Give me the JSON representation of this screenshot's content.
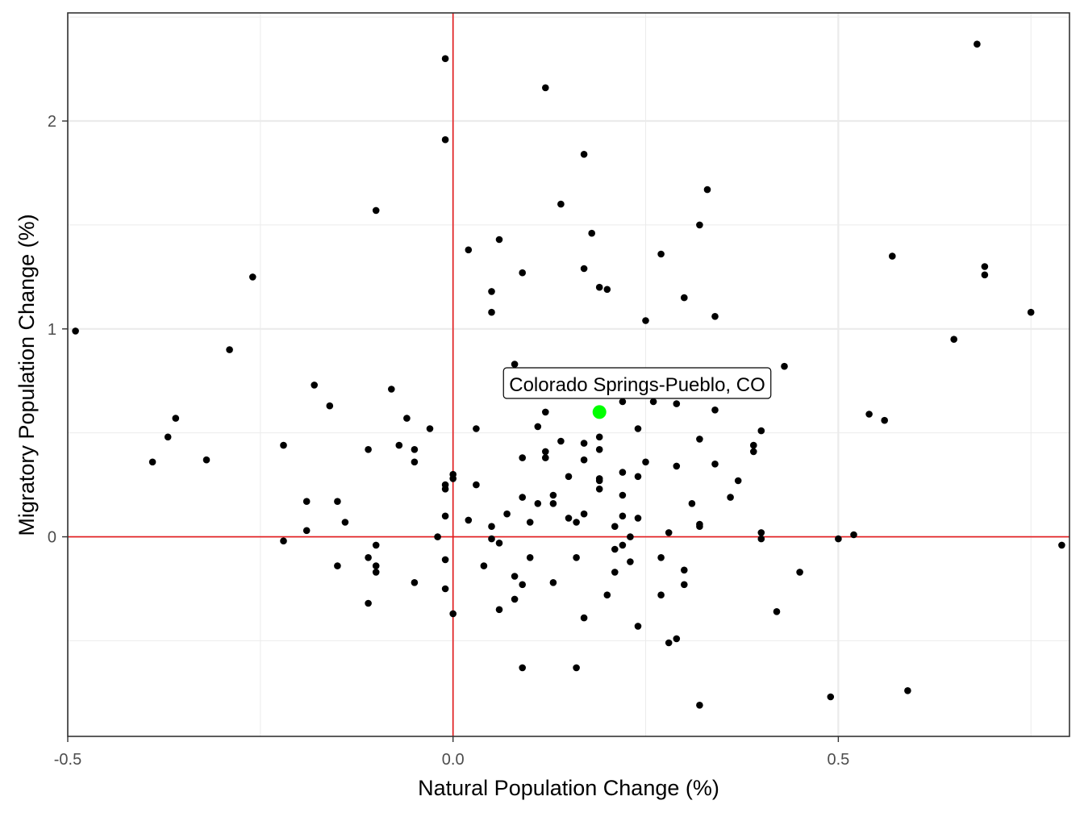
{
  "chart_data": {
    "type": "scatter",
    "xlabel": "Natural Population Change (%)",
    "ylabel": "Migratory Population Change (%)",
    "xlim": [
      -0.5,
      0.8
    ],
    "ylim": [
      -0.96,
      2.52
    ],
    "x_ticks": [
      -0.5,
      0.0,
      0.5
    ],
    "x_tick_labels": [
      "-0.5",
      "0.0",
      "0.5"
    ],
    "y_ticks": [
      0,
      1,
      2
    ],
    "y_tick_labels": [
      "0",
      "1",
      "2"
    ],
    "reference_lines": {
      "x": 0,
      "y": 0,
      "color": "#e41a1c"
    },
    "grid": true,
    "point_color": "#000000",
    "highlight": {
      "label": "Colorado Springs-Pueblo, CO",
      "x": 0.19,
      "y": 0.6,
      "color": "#00ff00"
    },
    "points": [
      [
        -0.49,
        0.99
      ],
      [
        -0.39,
        0.36
      ],
      [
        -0.37,
        0.48
      ],
      [
        -0.36,
        0.57
      ],
      [
        -0.32,
        0.37
      ],
      [
        -0.29,
        0.9
      ],
      [
        -0.26,
        1.25
      ],
      [
        -0.22,
        0.44
      ],
      [
        -0.22,
        -0.02
      ],
      [
        -0.19,
        0.17
      ],
      [
        -0.19,
        0.03
      ],
      [
        -0.18,
        0.73
      ],
      [
        -0.16,
        0.63
      ],
      [
        -0.15,
        0.17
      ],
      [
        -0.15,
        -0.14
      ],
      [
        -0.14,
        0.07
      ],
      [
        -0.11,
        0.42
      ],
      [
        -0.11,
        -0.1
      ],
      [
        -0.11,
        -0.32
      ],
      [
        -0.1,
        1.57
      ],
      [
        -0.1,
        -0.04
      ],
      [
        -0.1,
        -0.14
      ],
      [
        -0.1,
        -0.17
      ],
      [
        -0.08,
        0.71
      ],
      [
        -0.07,
        0.44
      ],
      [
        -0.06,
        0.57
      ],
      [
        -0.05,
        0.42
      ],
      [
        -0.05,
        0.36
      ],
      [
        -0.05,
        -0.22
      ],
      [
        -0.03,
        0.52
      ],
      [
        -0.02,
        0.0
      ],
      [
        -0.01,
        2.3
      ],
      [
        -0.01,
        1.91
      ],
      [
        -0.01,
        0.25
      ],
      [
        -0.01,
        0.23
      ],
      [
        -0.01,
        0.1
      ],
      [
        -0.01,
        -0.11
      ],
      [
        -0.01,
        -0.25
      ],
      [
        0.0,
        0.3
      ],
      [
        0.0,
        0.28
      ],
      [
        0.0,
        -0.37
      ],
      [
        0.02,
        1.38
      ],
      [
        0.02,
        0.08
      ],
      [
        0.03,
        0.52
      ],
      [
        0.03,
        0.25
      ],
      [
        0.04,
        -0.14
      ],
      [
        0.05,
        1.18
      ],
      [
        0.05,
        1.08
      ],
      [
        0.05,
        0.05
      ],
      [
        0.05,
        -0.01
      ],
      [
        0.06,
        1.43
      ],
      [
        0.06,
        -0.03
      ],
      [
        0.06,
        -0.35
      ],
      [
        0.07,
        0.11
      ],
      [
        0.08,
        0.83
      ],
      [
        0.08,
        -0.19
      ],
      [
        0.08,
        -0.3
      ],
      [
        0.09,
        1.27
      ],
      [
        0.09,
        0.38
      ],
      [
        0.09,
        0.19
      ],
      [
        0.09,
        -0.23
      ],
      [
        0.09,
        -0.63
      ],
      [
        0.1,
        0.07
      ],
      [
        0.1,
        -0.1
      ],
      [
        0.11,
        0.53
      ],
      [
        0.11,
        0.16
      ],
      [
        0.12,
        2.16
      ],
      [
        0.12,
        0.6
      ],
      [
        0.12,
        0.41
      ],
      [
        0.12,
        0.38
      ],
      [
        0.13,
        0.2
      ],
      [
        0.13,
        0.16
      ],
      [
        0.13,
        -0.22
      ],
      [
        0.14,
        1.6
      ],
      [
        0.14,
        0.46
      ],
      [
        0.15,
        0.29
      ],
      [
        0.15,
        0.09
      ],
      [
        0.16,
        0.07
      ],
      [
        0.16,
        -0.1
      ],
      [
        0.16,
        -0.63
      ],
      [
        0.17,
        1.84
      ],
      [
        0.17,
        1.29
      ],
      [
        0.17,
        0.45
      ],
      [
        0.17,
        0.37
      ],
      [
        0.17,
        0.11
      ],
      [
        0.17,
        -0.39
      ],
      [
        0.18,
        1.46
      ],
      [
        0.19,
        1.2
      ],
      [
        0.19,
        0.48
      ],
      [
        0.19,
        0.42
      ],
      [
        0.19,
        0.28
      ],
      [
        0.19,
        0.27
      ],
      [
        0.19,
        0.23
      ],
      [
        0.2,
        1.19
      ],
      [
        0.2,
        -0.28
      ],
      [
        0.21,
        0.05
      ],
      [
        0.21,
        -0.06
      ],
      [
        0.21,
        -0.17
      ],
      [
        0.22,
        0.65
      ],
      [
        0.22,
        0.31
      ],
      [
        0.22,
        0.2
      ],
      [
        0.22,
        0.1
      ],
      [
        0.22,
        -0.04
      ],
      [
        0.23,
        0.0
      ],
      [
        0.23,
        -0.12
      ],
      [
        0.24,
        0.52
      ],
      [
        0.24,
        0.29
      ],
      [
        0.24,
        0.09
      ],
      [
        0.24,
        -0.43
      ],
      [
        0.25,
        1.04
      ],
      [
        0.25,
        0.36
      ],
      [
        0.26,
        0.65
      ],
      [
        0.27,
        1.36
      ],
      [
        0.27,
        -0.1
      ],
      [
        0.27,
        -0.28
      ],
      [
        0.28,
        0.02
      ],
      [
        0.28,
        -0.51
      ],
      [
        0.29,
        0.64
      ],
      [
        0.29,
        0.34
      ],
      [
        0.29,
        -0.49
      ],
      [
        0.3,
        1.15
      ],
      [
        0.3,
        -0.16
      ],
      [
        0.3,
        -0.23
      ],
      [
        0.31,
        0.16
      ],
      [
        0.32,
        1.5
      ],
      [
        0.32,
        0.47
      ],
      [
        0.32,
        0.06
      ],
      [
        0.32,
        0.05
      ],
      [
        0.32,
        -0.81
      ],
      [
        0.33,
        1.67
      ],
      [
        0.34,
        1.06
      ],
      [
        0.34,
        0.61
      ],
      [
        0.34,
        0.35
      ],
      [
        0.36,
        0.19
      ],
      [
        0.37,
        0.27
      ],
      [
        0.39,
        0.44
      ],
      [
        0.39,
        0.41
      ],
      [
        0.4,
        0.51
      ],
      [
        0.4,
        0.02
      ],
      [
        0.4,
        -0.01
      ],
      [
        0.42,
        -0.36
      ],
      [
        0.43,
        0.82
      ],
      [
        0.45,
        -0.17
      ],
      [
        0.49,
        -0.77
      ],
      [
        0.5,
        -0.01
      ],
      [
        0.52,
        0.01
      ],
      [
        0.54,
        0.59
      ],
      [
        0.56,
        0.56
      ],
      [
        0.57,
        1.35
      ],
      [
        0.59,
        -0.74
      ],
      [
        0.65,
        0.95
      ],
      [
        0.68,
        2.37
      ],
      [
        0.69,
        1.3
      ],
      [
        0.69,
        1.26
      ],
      [
        0.75,
        1.08
      ],
      [
        0.79,
        -0.04
      ]
    ]
  }
}
